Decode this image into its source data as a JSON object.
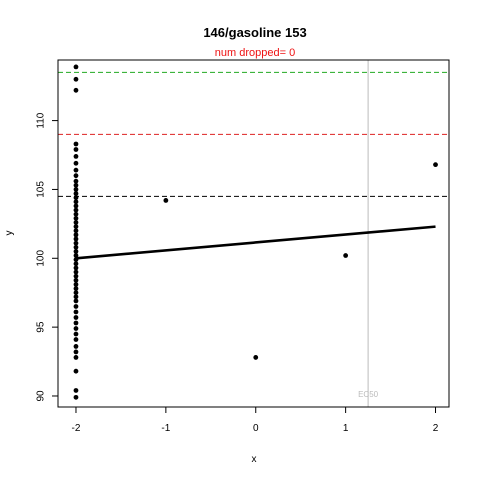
{
  "chart_data": {
    "type": "scatter",
    "title": "146/gasoline 153",
    "subtitle": "num dropped= 0",
    "xlabel": "x",
    "ylabel": "y",
    "xlim": [
      -2.2,
      2.15
    ],
    "ylim": [
      89.2,
      114.4
    ],
    "x_ticks": [
      -2,
      -1,
      0,
      1,
      2
    ],
    "y_ticks": [
      90,
      95,
      100,
      105,
      110
    ],
    "grid": false,
    "legend": "none",
    "series": [
      {
        "points": [
          [
            -2,
            113.9
          ],
          [
            -2,
            113.0
          ],
          [
            -2,
            112.2
          ],
          [
            -2,
            108.3
          ],
          [
            -2,
            107.9
          ],
          [
            -2,
            107.4
          ],
          [
            -2,
            106.9
          ],
          [
            -2,
            106.4
          ],
          [
            -2,
            106.0
          ],
          [
            -2,
            105.6
          ],
          [
            -2,
            105.3
          ],
          [
            -2,
            105.0
          ],
          [
            -2,
            104.7
          ],
          [
            -2,
            104.4
          ],
          [
            -2,
            104.1
          ],
          [
            -2,
            103.8
          ],
          [
            -2,
            103.5
          ],
          [
            -2,
            103.2
          ],
          [
            -2,
            102.9
          ],
          [
            -2,
            102.6
          ],
          [
            -2,
            102.3
          ],
          [
            -2,
            102.0
          ],
          [
            -2,
            101.7
          ],
          [
            -2,
            101.4
          ],
          [
            -2,
            101.1
          ],
          [
            -2,
            100.8
          ],
          [
            -2,
            100.5
          ],
          [
            -2,
            100.2
          ],
          [
            -2,
            99.9
          ],
          [
            -2,
            99.6
          ],
          [
            -2,
            99.3
          ],
          [
            -2,
            99.0
          ],
          [
            -2,
            98.7
          ],
          [
            -2,
            98.4
          ],
          [
            -2,
            98.1
          ],
          [
            -2,
            97.8
          ],
          [
            -2,
            97.5
          ],
          [
            -2,
            97.2
          ],
          [
            -2,
            96.9
          ],
          [
            -2,
            96.5
          ],
          [
            -2,
            96.1
          ],
          [
            -2,
            95.7
          ],
          [
            -2,
            95.3
          ],
          [
            -2,
            94.9
          ],
          [
            -2,
            94.5
          ],
          [
            -2,
            94.1
          ],
          [
            -2,
            93.6
          ],
          [
            -2,
            93.2
          ],
          [
            -2,
            92.8
          ],
          [
            -2,
            91.8
          ],
          [
            -2,
            90.4
          ],
          [
            -2,
            89.9
          ],
          [
            -1,
            104.2
          ],
          [
            0,
            92.8
          ],
          [
            1,
            100.2
          ],
          [
            2,
            106.8
          ]
        ]
      }
    ],
    "fit_line": {
      "x": [
        -2,
        2
      ],
      "y": [
        100.0,
        102.3
      ]
    },
    "hlines": [
      {
        "y": 113.5,
        "color": "#22aa22",
        "style": "dashed"
      },
      {
        "y": 109.0,
        "color": "#dd2222",
        "style": "dashed"
      },
      {
        "y": 104.5,
        "color": "#000000",
        "style": "dashed"
      }
    ],
    "vline": {
      "x": 1.25,
      "color": "#bbbbbb",
      "label": "EC50"
    },
    "colors": {
      "points": "#000000",
      "subtitle": "#ee1111",
      "vline_label": "#bbbbbb"
    }
  }
}
